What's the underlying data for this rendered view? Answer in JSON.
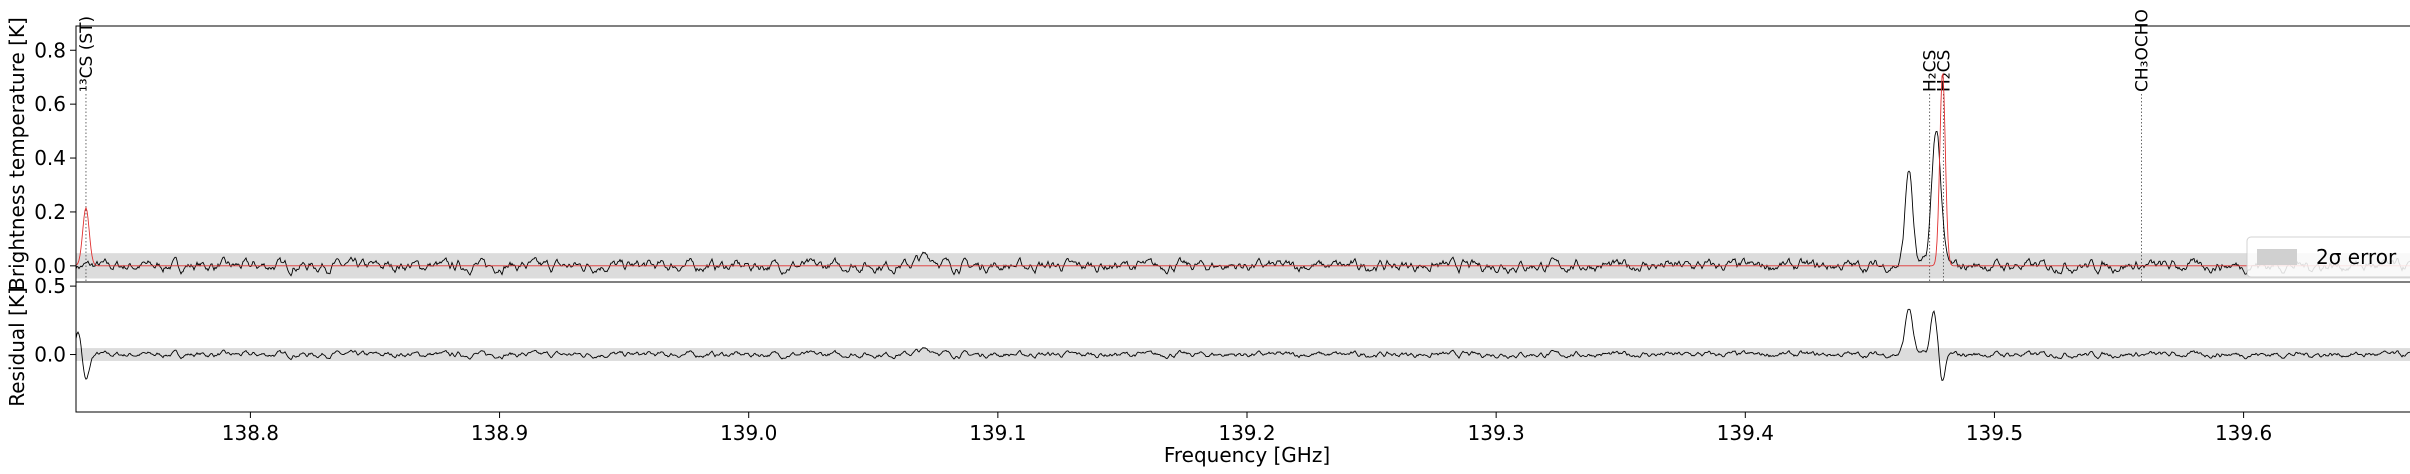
{
  "chart_data": [
    {
      "type": "line",
      "xlim": [
        138.73,
        139.67
      ],
      "ylim": [
        -0.06,
        0.89
      ],
      "ylabel": "Brightness temperature [K]",
      "yticks": [
        0.0,
        0.2,
        0.4,
        0.6,
        0.8
      ],
      "ytick_labels": [
        "0.0",
        "0.2",
        "0.4",
        "0.6",
        "0.8"
      ],
      "error_band": [
        -0.047,
        0.047
      ],
      "legend": {
        "label": "2σ error",
        "placement": "right"
      },
      "series": [
        {
          "role": "observed",
          "color": "#000000",
          "peaks": [
            {
              "x": 139.466,
              "y": 0.36,
              "w": 0.0015
            },
            {
              "x": 139.477,
              "y": 0.51,
              "w": 0.0018
            },
            {
              "x": 139.072,
              "y": 0.035,
              "w": 0.004
            }
          ]
        },
        {
          "role": "model",
          "color": "#e03030",
          "peaks": [
            {
              "x": 138.734,
              "y": 0.215,
              "w": 0.0013
            },
            {
              "x": 139.4795,
              "y": 0.72,
              "w": 0.0011
            }
          ]
        }
      ],
      "line_markers": [
        {
          "x": 138.734,
          "label": "¹³CS (ST)",
          "style": "dotted"
        },
        {
          "x": 139.474,
          "label": "H₂CS",
          "style": "dotted"
        },
        {
          "x": 139.4795,
          "label": "H₂CS",
          "style": "dotted"
        },
        {
          "x": 139.559,
          "label": "CH₃OCHO",
          "style": "dotted"
        }
      ],
      "noise_amplitude": 0.02
    },
    {
      "type": "line",
      "xlim": [
        138.73,
        139.67
      ],
      "ylim": [
        -0.42,
        0.53
      ],
      "xlabel": "Frequency [GHz]",
      "ylabel": "Residual [K]",
      "yticks": [
        0.0,
        0.5
      ],
      "ytick_labels": [
        "0.0",
        "0.5"
      ],
      "xticks": [
        138.8,
        138.9,
        139.0,
        139.1,
        139.2,
        139.3,
        139.4,
        139.5,
        139.6
      ],
      "xtick_labels": [
        "138.8",
        "138.9",
        "139.0",
        "139.1",
        "139.2",
        "139.3",
        "139.4",
        "139.5",
        "139.6"
      ],
      "error_band": [
        -0.047,
        0.047
      ],
      "series": [
        {
          "role": "residual",
          "color": "#000000",
          "peaks": [
            {
              "x": 138.731,
              "y": 0.18,
              "w": 0.0012
            },
            {
              "x": 138.734,
              "y": -0.2,
              "w": 0.0013
            },
            {
              "x": 139.466,
              "y": 0.34,
              "w": 0.0015
            },
            {
              "x": 139.476,
              "y": 0.31,
              "w": 0.0013
            },
            {
              "x": 139.4795,
              "y": -0.21,
              "w": 0.0011
            },
            {
              "x": 139.072,
              "y": 0.035,
              "w": 0.004
            }
          ]
        }
      ],
      "noise_amplitude": 0.02
    }
  ]
}
